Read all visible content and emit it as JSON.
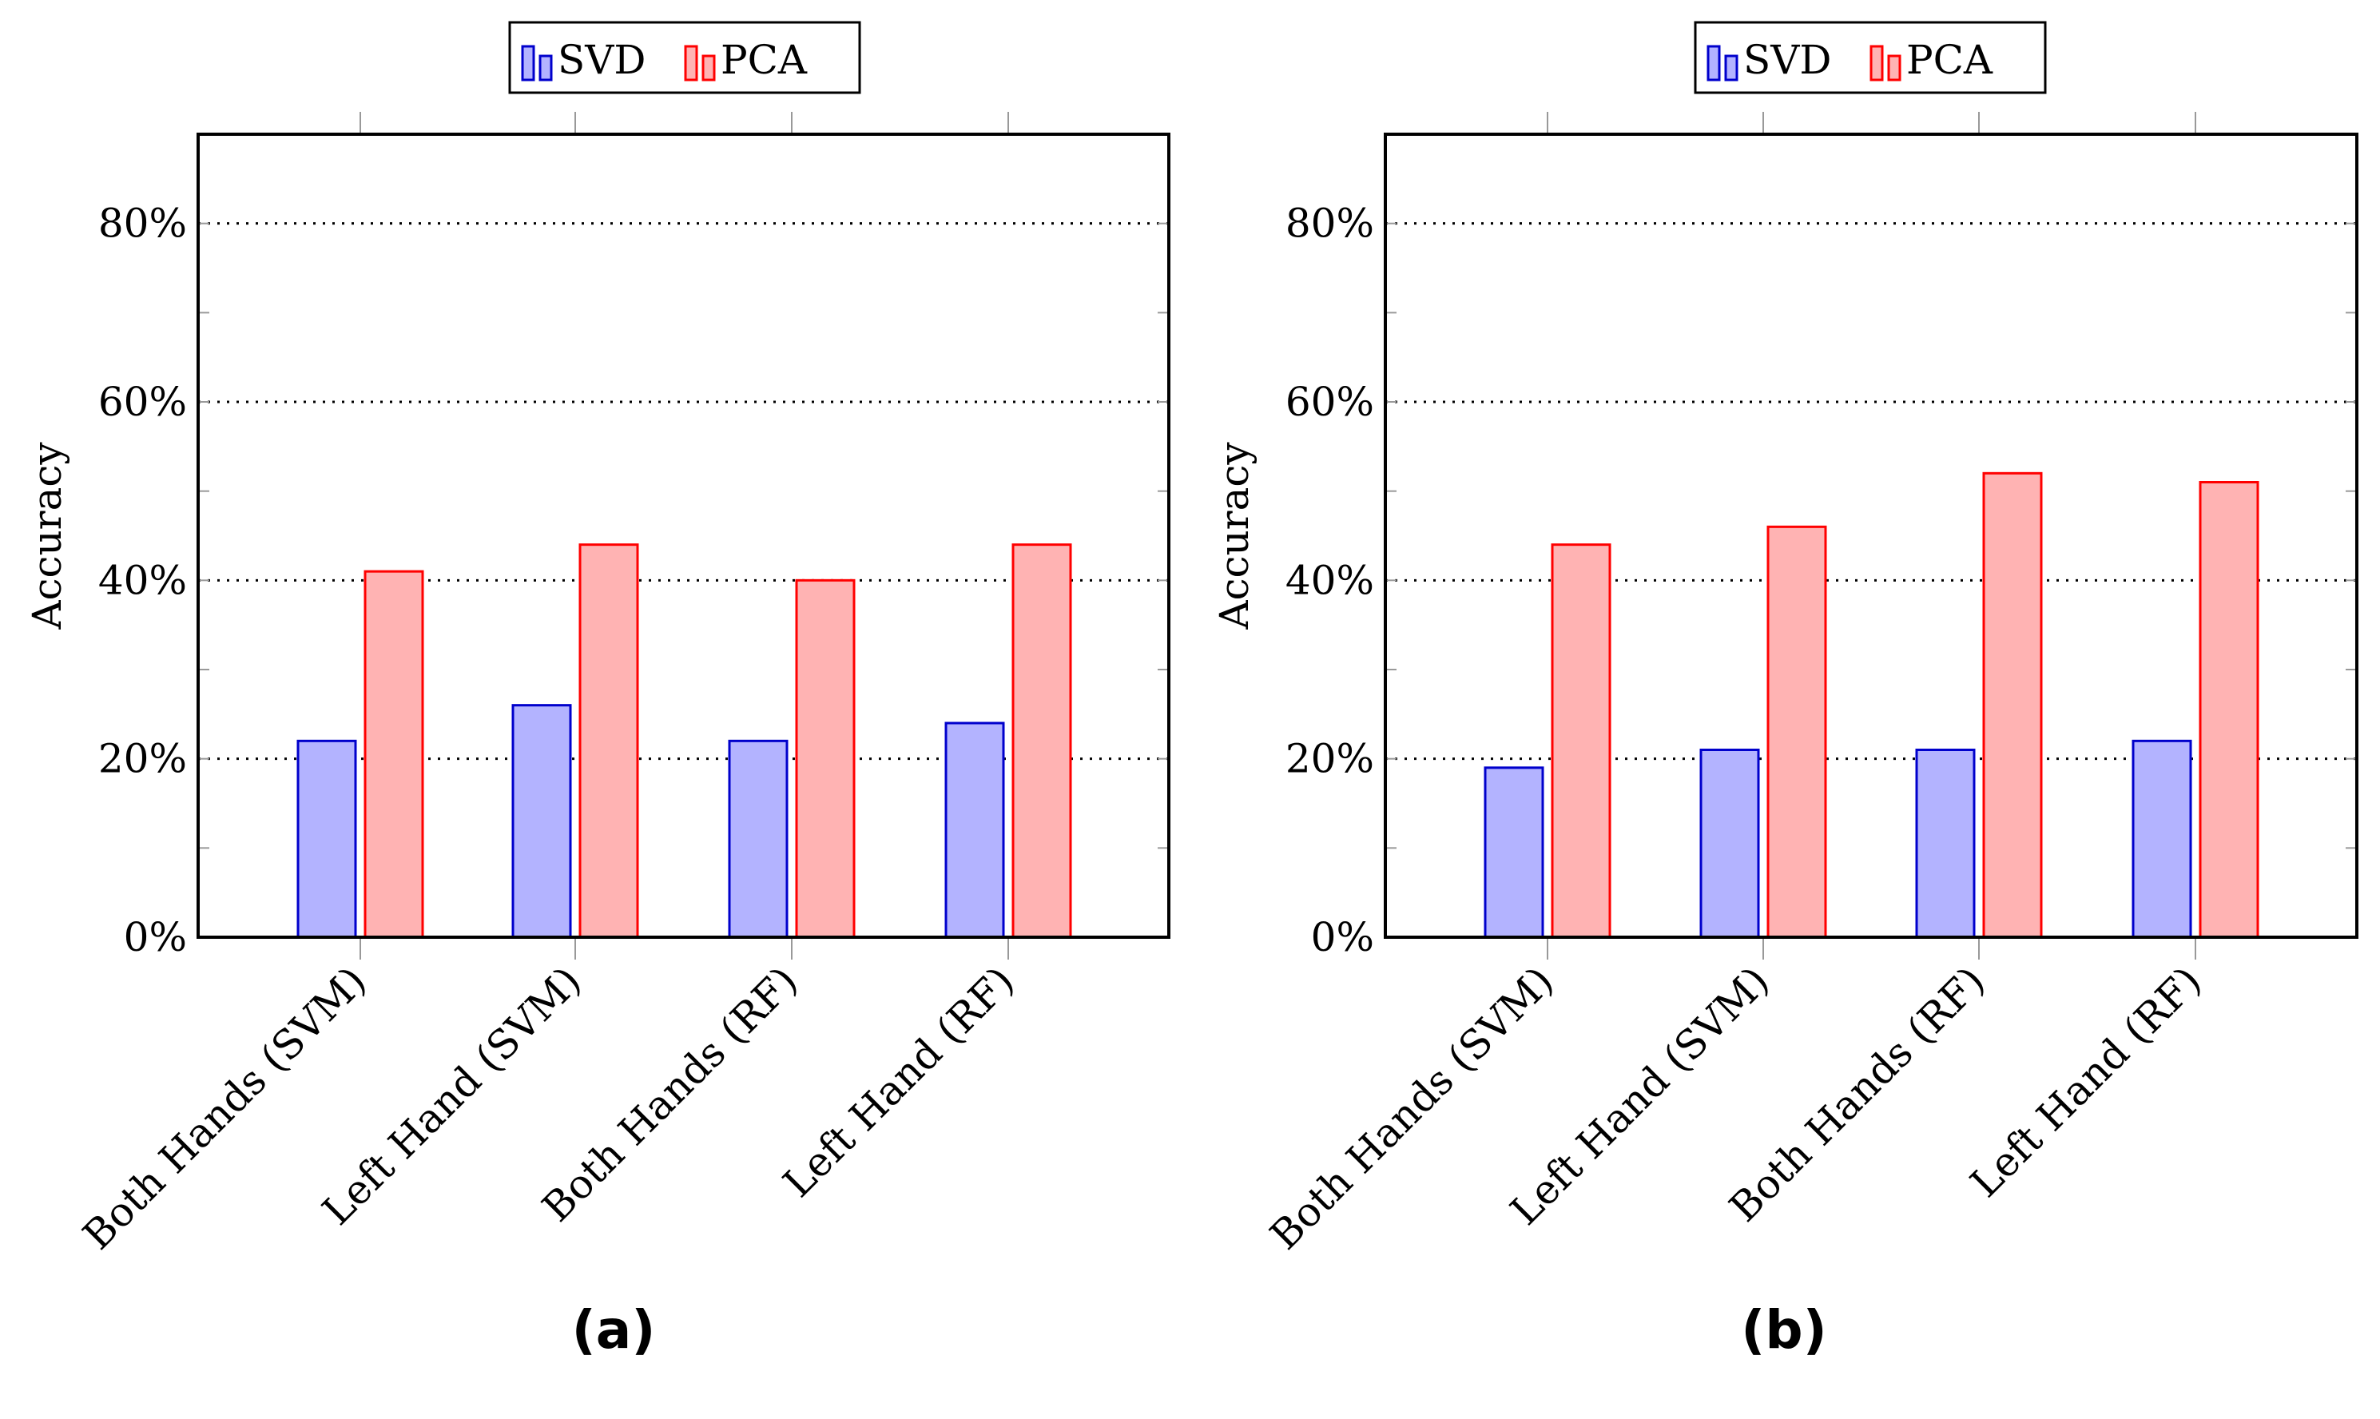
{
  "chart_data": [
    {
      "type": "bar",
      "panel_label": "(a)",
      "categories": [
        "Both Hands (SVM)",
        "Left Hand (SVM)",
        "Both Hands (RF)",
        "Left Hand (RF)"
      ],
      "series": [
        {
          "name": "SVD",
          "values": [
            22,
            26,
            22,
            24
          ],
          "color": "#0000cc",
          "fill": "#b3b3ff"
        },
        {
          "name": "PCA",
          "values": [
            41,
            44,
            40,
            44
          ],
          "color": "#ff0000",
          "fill": "#ffb3b3"
        }
      ],
      "ylabel": "Accuracy",
      "ylim": [
        0,
        90
      ],
      "yticks": [
        "0%",
        "20%",
        "40%",
        "60%",
        "80%"
      ],
      "ytick_values": [
        0,
        20,
        40,
        60,
        80
      ],
      "grid": "horizontal dotted",
      "legend": "top-center (above plot)"
    },
    {
      "type": "bar",
      "panel_label": "(b)",
      "categories": [
        "Both Hands (SVM)",
        "Left Hand (SVM)",
        "Both Hands (RF)",
        "Left Hand (RF)"
      ],
      "series": [
        {
          "name": "SVD",
          "values": [
            19,
            21,
            21,
            22
          ],
          "color": "#0000cc",
          "fill": "#b3b3ff"
        },
        {
          "name": "PCA",
          "values": [
            44,
            46,
            52,
            51
          ],
          "color": "#ff0000",
          "fill": "#ffb3b3"
        }
      ],
      "ylabel": "Accuracy",
      "ylim": [
        0,
        90
      ],
      "yticks": [
        "0%",
        "20%",
        "40%",
        "60%",
        "80%"
      ],
      "ytick_values": [
        0,
        20,
        40,
        60,
        80
      ],
      "grid": "horizontal dotted",
      "legend": "top-center (above plot)"
    }
  ]
}
